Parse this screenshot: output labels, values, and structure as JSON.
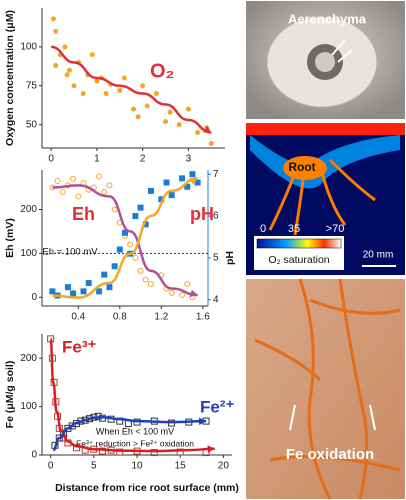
{
  "chart_data": [
    {
      "type": "scatter",
      "ylabel": "Oxygen concentration (μM)",
      "xlim": [
        -0.2,
        3.8
      ],
      "xticks": [
        0,
        1,
        2,
        3
      ],
      "ylim": [
        35,
        125
      ],
      "yticks": [
        50,
        75,
        100
      ],
      "series": [
        {
          "style": "circle",
          "color": "#f5a623",
          "x": [
            0.05,
            0.1,
            0.1,
            0.2,
            0.3,
            0.35,
            0.4,
            0.5,
            0.6,
            0.7,
            0.8,
            0.9,
            1.0,
            1.1,
            1.2,
            1.3,
            1.5,
            1.6,
            1.8,
            1.9,
            2.0,
            2.1,
            2.3,
            2.5,
            2.6,
            2.8,
            3.0,
            3.2,
            3.4,
            3.5
          ],
          "values": [
            118,
            110,
            88,
            95,
            100,
            82,
            85,
            75,
            90,
            70,
            82,
            95,
            78,
            80,
            70,
            76,
            72,
            80,
            60,
            55,
            75,
            62,
            70,
            52,
            58,
            50,
            60,
            45,
            48,
            38
          ]
        },
        {
          "style": "line",
          "color": "#e0303a",
          "x": [
            0,
            0.5,
            1,
            1.5,
            2,
            2.5,
            3,
            3.5
          ],
          "values": [
            100,
            90,
            80,
            75,
            70,
            63,
            53,
            45
          ]
        }
      ],
      "annotations": [
        {
          "text": "O₂",
          "color": "#e0303a"
        }
      ]
    },
    {
      "type": "scatter",
      "ylabel": "Eh (mV)",
      "y2label": "pH",
      "y2color": "#1a7fd4",
      "xlim": [
        0.05,
        1.65
      ],
      "xticks": [
        0.4,
        0.8,
        1.2,
        1.6
      ],
      "ylim": [
        -20,
        290
      ],
      "yticks": [
        0,
        100,
        200
      ],
      "y2lim": [
        3.85,
        7.1
      ],
      "y2ticks": [
        4,
        5,
        6,
        7
      ],
      "hlines": [
        100
      ],
      "series": [
        {
          "style": "circle-open",
          "color": "#f5a623",
          "x": [
            0.15,
            0.2,
            0.25,
            0.3,
            0.35,
            0.4,
            0.45,
            0.5,
            0.55,
            0.6,
            0.65,
            0.7,
            0.75,
            0.8,
            0.85,
            0.9,
            0.95,
            1.0,
            1.05,
            1.1,
            1.2,
            1.25,
            1.3,
            1.4,
            1.45,
            1.5
          ],
          "values": [
            250,
            265,
            240,
            255,
            270,
            230,
            260,
            245,
            250,
            275,
            240,
            255,
            200,
            170,
            140,
            120,
            90,
            60,
            40,
            30,
            50,
            20,
            10,
            5,
            30,
            0
          ]
        },
        {
          "style": "square",
          "color": "#1a7fd4",
          "axis": "y2",
          "x": [
            0.15,
            0.2,
            0.3,
            0.35,
            0.45,
            0.5,
            0.6,
            0.65,
            0.7,
            0.75,
            0.8,
            0.85,
            0.9,
            0.95,
            1.0,
            1.05,
            1.1,
            1.2,
            1.25,
            1.3,
            1.4,
            1.45,
            1.5,
            1.55
          ],
          "values": [
            4.2,
            4.1,
            4.3,
            4.15,
            4.2,
            4.4,
            4.2,
            4.6,
            4.3,
            4.8,
            5.2,
            5.6,
            5.1,
            6.0,
            6.2,
            5.8,
            6.6,
            6.4,
            6.8,
            6.5,
            6.9,
            6.7,
            7.0,
            6.8
          ]
        },
        {
          "style": "line",
          "color": "#b04f9a",
          "x": [
            0.15,
            0.4,
            0.7,
            0.9,
            1.1,
            1.3,
            1.55
          ],
          "values": [
            250,
            255,
            230,
            150,
            60,
            20,
            5
          ]
        },
        {
          "style": "line",
          "color": "#f5a623",
          "axis": "y2",
          "x": [
            0.15,
            0.4,
            0.7,
            0.9,
            1.1,
            1.3,
            1.55
          ],
          "values": [
            4.1,
            4.05,
            4.4,
            5.1,
            6.0,
            6.6,
            6.9
          ]
        }
      ],
      "annotations": [
        {
          "text": "Eh",
          "color": "#e0303a"
        },
        {
          "text": "pH",
          "color": "#e0303a"
        },
        {
          "text": "Eh = 100 mV",
          "color": "#111"
        }
      ]
    },
    {
      "type": "scatter",
      "ylabel": "Fe (μM/g soil)",
      "xlabel": "Distance from rice root surface (mm)",
      "xlim": [
        -1,
        21
      ],
      "xticks": [
        0,
        5,
        10,
        15,
        20
      ],
      "ylim": [
        0,
        250
      ],
      "yticks": [
        0,
        100,
        200
      ],
      "series": [
        {
          "style": "square-open",
          "color": "#c0392b",
          "x": [
            0,
            0.2,
            0.4,
            0.6,
            0.8,
            1,
            1.5,
            2,
            3,
            4,
            5,
            6,
            7,
            8,
            10,
            12,
            15,
            18
          ],
          "values": [
            240,
            200,
            150,
            110,
            80,
            55,
            35,
            25,
            15,
            10,
            12,
            8,
            10,
            6,
            8,
            5,
            6,
            5
          ]
        },
        {
          "style": "square-open",
          "color": "#333",
          "x": [
            0.5,
            1,
            1.5,
            2,
            2.5,
            3,
            3.5,
            4,
            4.5,
            5,
            5.5,
            6,
            7,
            8,
            9,
            10,
            12,
            14,
            16,
            18
          ],
          "values": [
            20,
            35,
            45,
            55,
            60,
            65,
            70,
            72,
            75,
            78,
            80,
            76,
            74,
            70,
            65,
            68,
            70,
            66,
            68,
            70
          ]
        },
        {
          "style": "line",
          "color": "#d42020",
          "x": [
            0,
            0.3,
            0.7,
            1.2,
            2,
            3,
            5,
            8,
            12,
            16,
            19
          ],
          "values": [
            240,
            150,
            90,
            50,
            28,
            18,
            12,
            9,
            8,
            10,
            13
          ]
        },
        {
          "style": "line",
          "color": "#1f3fbf",
          "x": [
            0.3,
            1,
            2,
            3,
            4,
            5,
            6,
            8,
            10,
            14,
            18
          ],
          "values": [
            10,
            35,
            55,
            66,
            72,
            77,
            78,
            74,
            70,
            68,
            70
          ]
        }
      ],
      "annotations": [
        {
          "text": "Fe³⁺",
          "color": "#d42020"
        },
        {
          "text": "Fe²⁺",
          "color": "#1f3fbf"
        },
        {
          "text": "When Eh < 100 mV",
          "color": "#111"
        },
        {
          "text": "Fe³⁺ reduction > Fe²⁺ oxidation",
          "color": "#111"
        }
      ]
    }
  ],
  "panels": {
    "aerenchyma": "Aerenchyma",
    "root": "Root",
    "scale_min": "0",
    "scale_mid": "35",
    "scale_max": ">70",
    "scale_title": "O₂ saturation",
    "scale_bar": "20 mm",
    "fe_oxidation": "Fe oxidation"
  }
}
